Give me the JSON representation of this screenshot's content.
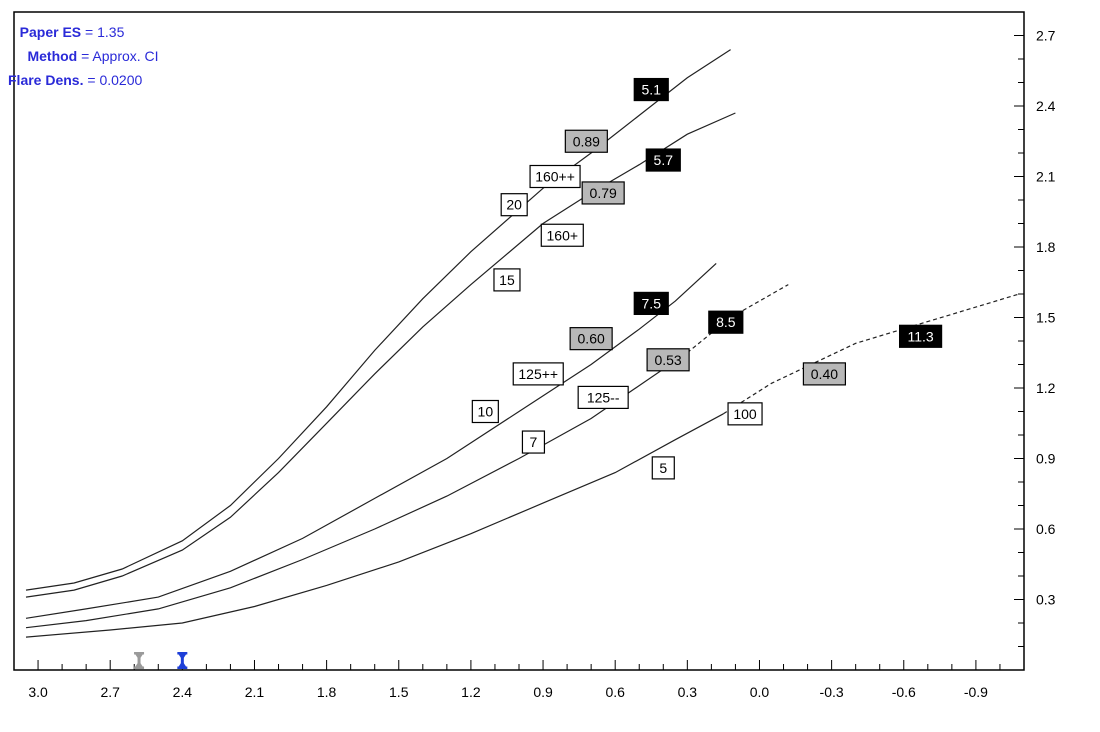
{
  "info": {
    "paper_es_key": "Paper ES",
    "paper_es_value": "1.35",
    "method_key": "Method",
    "method_value": "Approx. CI",
    "flare_key": "Flare Dens.",
    "flare_value": "0.0200"
  },
  "colors": {
    "info_text": "#2a2ad8",
    "marker": "#1e3fd8",
    "marker_gray": "#9a9a9a",
    "label_gray": "#b8b8b8",
    "label_black": "#000000",
    "line": "#222222"
  },
  "chart_data": {
    "type": "line",
    "xlim": [
      3.1,
      -1.1
    ],
    "ylim": [
      0.0,
      2.8
    ],
    "x_ticks": [
      "3.0",
      "2.7",
      "2.4",
      "2.1",
      "1.8",
      "1.5",
      "1.2",
      "0.9",
      "0.6",
      "0.3",
      "0.0",
      "-0.3",
      "-0.6",
      "-0.9"
    ],
    "y_ticks": [
      "0.3",
      "0.6",
      "0.9",
      "1.2",
      "1.5",
      "1.8",
      "2.1",
      "2.4",
      "2.7"
    ],
    "x_markers": [
      {
        "x": 2.58,
        "color": "gray"
      },
      {
        "x": 2.4,
        "color": "blue"
      }
    ],
    "series": [
      {
        "points": [
          [
            3.05,
            0.34
          ],
          [
            2.85,
            0.37
          ],
          [
            2.65,
            0.43
          ],
          [
            2.4,
            0.55
          ],
          [
            2.2,
            0.7
          ],
          [
            2.0,
            0.9
          ],
          [
            1.8,
            1.12
          ],
          [
            1.6,
            1.36
          ],
          [
            1.4,
            1.58
          ],
          [
            1.2,
            1.78
          ],
          [
            0.9,
            2.05
          ],
          [
            0.7,
            2.2
          ],
          [
            0.5,
            2.36
          ],
          [
            0.3,
            2.52
          ],
          [
            0.12,
            2.64
          ]
        ],
        "dashed_from": null
      },
      {
        "points": [
          [
            3.05,
            0.31
          ],
          [
            2.85,
            0.34
          ],
          [
            2.65,
            0.4
          ],
          [
            2.4,
            0.51
          ],
          [
            2.2,
            0.65
          ],
          [
            2.0,
            0.84
          ],
          [
            1.8,
            1.05
          ],
          [
            1.6,
            1.26
          ],
          [
            1.4,
            1.46
          ],
          [
            1.2,
            1.64
          ],
          [
            0.9,
            1.9
          ],
          [
            0.7,
            2.03
          ],
          [
            0.5,
            2.15
          ],
          [
            0.3,
            2.28
          ],
          [
            0.1,
            2.37
          ]
        ],
        "dashed_from": null
      },
      {
        "points": [
          [
            3.05,
            0.22
          ],
          [
            2.8,
            0.26
          ],
          [
            2.5,
            0.31
          ],
          [
            2.2,
            0.42
          ],
          [
            1.9,
            0.56
          ],
          [
            1.6,
            0.73
          ],
          [
            1.3,
            0.9
          ],
          [
            1.0,
            1.1
          ],
          [
            0.7,
            1.3
          ],
          [
            0.5,
            1.45
          ],
          [
            0.35,
            1.57
          ],
          [
            0.18,
            1.73
          ]
        ],
        "dashed_from": null
      },
      {
        "points": [
          [
            3.05,
            0.18
          ],
          [
            2.8,
            0.21
          ],
          [
            2.5,
            0.26
          ],
          [
            2.2,
            0.35
          ],
          [
            1.9,
            0.47
          ],
          [
            1.6,
            0.6
          ],
          [
            1.3,
            0.74
          ],
          [
            1.0,
            0.9
          ],
          [
            0.7,
            1.07
          ],
          [
            0.5,
            1.21
          ],
          [
            0.3,
            1.35
          ],
          [
            0.12,
            1.5
          ],
          [
            -0.12,
            1.64
          ]
        ],
        "dashed_from": 0.12
      },
      {
        "points": [
          [
            3.05,
            0.14
          ],
          [
            2.7,
            0.17
          ],
          [
            2.4,
            0.2
          ],
          [
            2.1,
            0.27
          ],
          [
            1.8,
            0.36
          ],
          [
            1.5,
            0.46
          ],
          [
            1.2,
            0.58
          ],
          [
            0.9,
            0.71
          ],
          [
            0.6,
            0.84
          ],
          [
            0.35,
            0.98
          ],
          [
            0.15,
            1.09
          ],
          [
            -0.05,
            1.22
          ],
          [
            -0.4,
            1.39
          ],
          [
            -1.08,
            1.6
          ]
        ],
        "dashed_from": 0.05
      }
    ],
    "labels": [
      {
        "text": "5.1",
        "x": 0.45,
        "y": 2.47,
        "style": "black"
      },
      {
        "text": "0.89",
        "x": 0.72,
        "y": 2.25,
        "style": "gray"
      },
      {
        "text": "160++",
        "x": 0.85,
        "y": 2.1,
        "style": "white"
      },
      {
        "text": "5.7",
        "x": 0.4,
        "y": 2.17,
        "style": "black"
      },
      {
        "text": "0.79",
        "x": 0.65,
        "y": 2.03,
        "style": "gray"
      },
      {
        "text": "20",
        "x": 1.02,
        "y": 1.98,
        "style": "white"
      },
      {
        "text": "160+",
        "x": 0.82,
        "y": 1.85,
        "style": "white"
      },
      {
        "text": "15",
        "x": 1.05,
        "y": 1.66,
        "style": "white"
      },
      {
        "text": "7.5",
        "x": 0.45,
        "y": 1.56,
        "style": "black"
      },
      {
        "text": "8.5",
        "x": 0.14,
        "y": 1.48,
        "style": "black"
      },
      {
        "text": "0.60",
        "x": 0.7,
        "y": 1.41,
        "style": "gray"
      },
      {
        "text": "11.3",
        "x": -0.67,
        "y": 1.42,
        "style": "black"
      },
      {
        "text": "0.53",
        "x": 0.38,
        "y": 1.32,
        "style": "gray"
      },
      {
        "text": "0.40",
        "x": -0.27,
        "y": 1.26,
        "style": "gray"
      },
      {
        "text": "125++",
        "x": 0.92,
        "y": 1.26,
        "style": "white"
      },
      {
        "text": "125--",
        "x": 0.65,
        "y": 1.16,
        "style": "white"
      },
      {
        "text": "10",
        "x": 1.14,
        "y": 1.1,
        "style": "white"
      },
      {
        "text": "100",
        "x": 0.06,
        "y": 1.09,
        "style": "white"
      },
      {
        "text": "7",
        "x": 0.94,
        "y": 0.97,
        "style": "white"
      },
      {
        "text": "5",
        "x": 0.4,
        "y": 0.86,
        "style": "white"
      }
    ]
  }
}
